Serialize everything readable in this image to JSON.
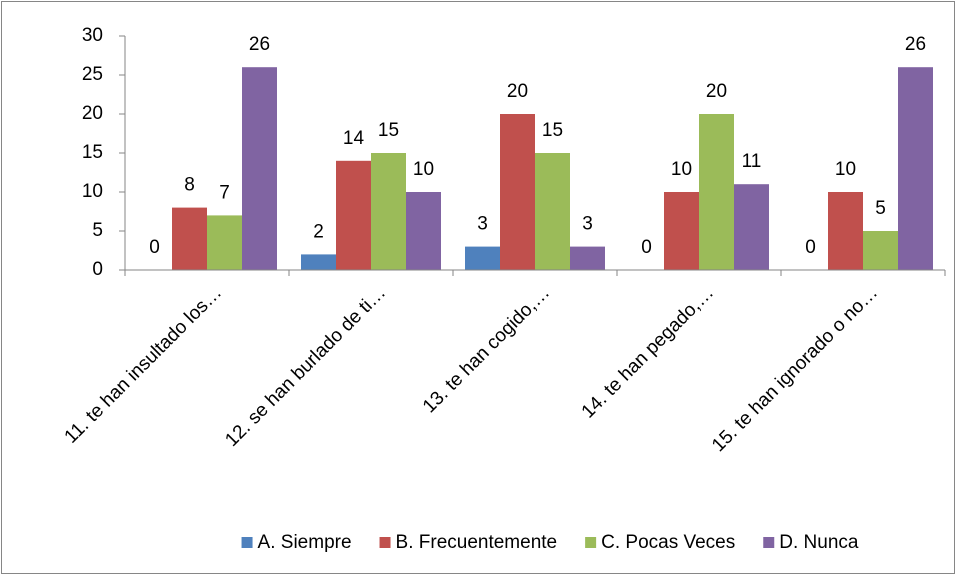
{
  "chart_data": {
    "type": "bar",
    "categories": [
      "11. te han insultado los…",
      "12. se han burlado de ti…",
      "13. te han cogido,…",
      "14. te han pegado,…",
      "15. te han ignorado o no…"
    ],
    "series": [
      {
        "name": "A. Siempre",
        "color": "#4f81bd",
        "values": [
          0,
          2,
          3,
          0,
          0
        ]
      },
      {
        "name": "B. Frecuentemente",
        "color": "#c0504d",
        "values": [
          8,
          14,
          20,
          10,
          10
        ]
      },
      {
        "name": "C. Pocas Veces",
        "color": "#9bbb59",
        "values": [
          7,
          15,
          15,
          20,
          5
        ]
      },
      {
        "name": "D. Nunca",
        "color": "#8064a2",
        "values": [
          26,
          10,
          3,
          11,
          26
        ]
      }
    ],
    "ylim": [
      0,
      30
    ],
    "yticks": [
      0,
      5,
      10,
      15,
      20,
      25,
      30
    ],
    "grid": false,
    "legend": "bottom"
  }
}
